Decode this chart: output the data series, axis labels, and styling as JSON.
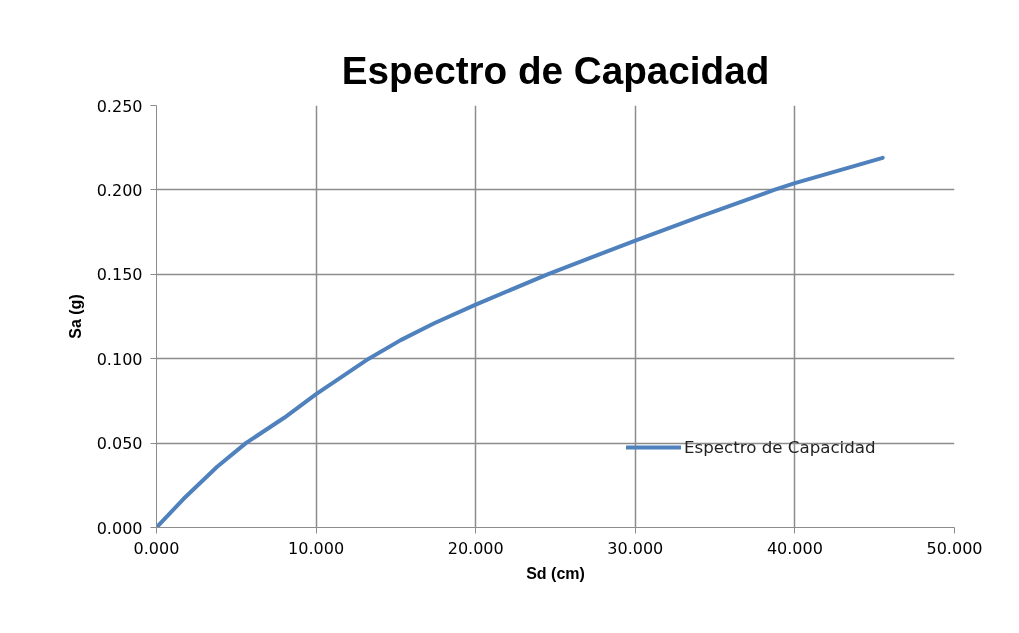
{
  "chart_data": {
    "type": "line",
    "title": "Espectro de Capacidad",
    "xlabel": "Sd (cm)",
    "ylabel": "Sa (g)",
    "x": [
      0,
      1.7,
      3.8,
      5.6,
      8,
      10,
      13.3,
      15.3,
      17.4,
      20,
      24.5,
      30,
      34,
      38.7,
      40,
      45.5
    ],
    "series": [
      {
        "name": "Espectro de Capacidad",
        "color": "#4f81bd",
        "values": [
          0,
          0.017,
          0.036,
          0.05,
          0.065,
          0.079,
          0.1,
          0.111,
          0.121,
          0.132,
          0.15,
          0.17,
          0.184,
          0.2,
          0.204,
          0.219
        ]
      }
    ],
    "xlim": [
      0,
      50
    ],
    "xticks": [
      {
        "value": 0,
        "label": "0.000"
      },
      {
        "value": 10,
        "label": "10.000"
      },
      {
        "value": 20,
        "label": "20.000"
      },
      {
        "value": 30,
        "label": "30.000"
      },
      {
        "value": 40,
        "label": "40.000"
      },
      {
        "value": 50,
        "label": "50.000"
      }
    ],
    "ylim": [
      0,
      0.25
    ],
    "yticks": [
      {
        "value": 0,
        "label": "0.000"
      },
      {
        "value": 0.05,
        "label": "0.050"
      },
      {
        "value": 0.1,
        "label": "0.100"
      },
      {
        "value": 0.15,
        "label": "0.150"
      },
      {
        "value": 0.2,
        "label": "0.200"
      },
      {
        "value": 0.25,
        "label": "0.250"
      }
    ],
    "grid": true,
    "legend": "bottom right",
    "line_style": "solid"
  }
}
